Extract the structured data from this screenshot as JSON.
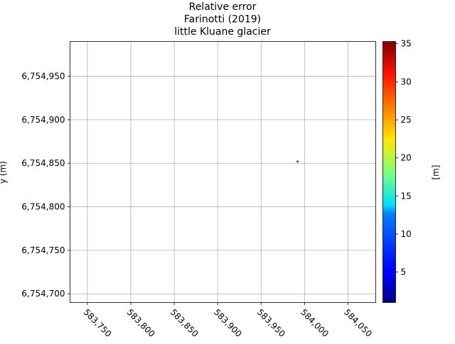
{
  "chart_data": {
    "type": "heatmap",
    "title_lines": [
      "Relative error",
      "Farinotti (2019)",
      "little Kluane glacier"
    ],
    "ylabel": "y (m)",
    "xlabel": "",
    "colorbar_label": "[m]",
    "xlim": [
      583730,
      584082
    ],
    "ylim": [
      6754690,
      6754990
    ],
    "x_ticks": [
      583750,
      583800,
      583850,
      583900,
      583950,
      584000,
      584050
    ],
    "x_tick_labels": [
      "583,750",
      "583,800",
      "583,850",
      "583,900",
      "583,950",
      "584,000",
      "584,050"
    ],
    "y_ticks": [
      6754700,
      6754750,
      6754800,
      6754850,
      6754900,
      6754950
    ],
    "y_tick_labels": [
      "6,754,700",
      "6,754,750",
      "6,754,800",
      "6,754,850",
      "6,754,900",
      "6,754,950"
    ],
    "colorbar_range": [
      1,
      35.3
    ],
    "colorbar_ticks": [
      5,
      10,
      15,
      20,
      25,
      30,
      35
    ],
    "colormap": "jet",
    "grid": true,
    "points": [
      {
        "x": 583992,
        "y": 6754852,
        "value": 35
      }
    ]
  }
}
